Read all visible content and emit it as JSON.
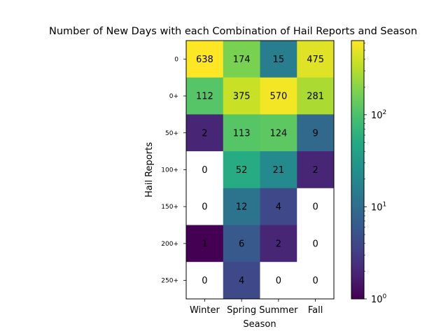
{
  "chart_data": {
    "type": "heatmap",
    "title": "Number of New Days with each Combination of Hail Reports and Season",
    "xlabel": "Season",
    "ylabel": "Hail Reports",
    "x_categories": [
      "Winter",
      "Spring",
      "Summer",
      "Fall"
    ],
    "y_categories": [
      "0",
      "0+",
      "50+",
      "100+",
      "150+",
      "200+",
      "250+"
    ],
    "values": [
      [
        638,
        174,
        15,
        475
      ],
      [
        112,
        375,
        570,
        281
      ],
      [
        2,
        113,
        124,
        9
      ],
      [
        0,
        52,
        21,
        2
      ],
      [
        0,
        12,
        4,
        0
      ],
      [
        1,
        6,
        2,
        0
      ],
      [
        0,
        4,
        0,
        0
      ]
    ],
    "colorscale": "viridis",
    "color_scale_type": "log",
    "color_range": [
      1,
      638
    ],
    "zero_cells_color": "#ffffff",
    "colorbar_ticks": [
      {
        "base": "10",
        "exp": "0",
        "value": 1
      },
      {
        "base": "10",
        "exp": "1",
        "value": 10
      },
      {
        "base": "10",
        "exp": "2",
        "value": 100
      }
    ],
    "grid": false
  }
}
